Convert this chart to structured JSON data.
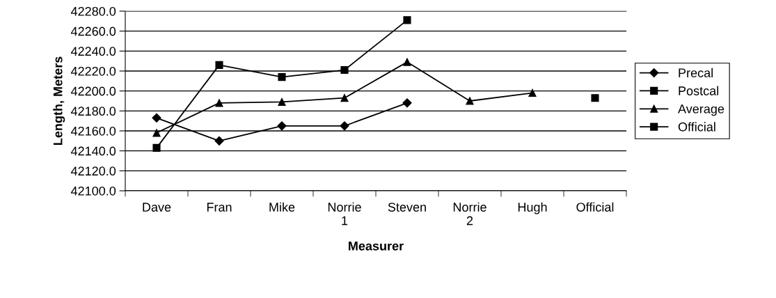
{
  "chart_data": {
    "type": "line",
    "xlabel": "Measurer",
    "ylabel": "Length, Meters",
    "categories": [
      "Dave",
      "Fran",
      "Mike",
      "Norrie\n1",
      "Steven",
      "Norrie\n2",
      "Hugh",
      "Official"
    ],
    "series": [
      {
        "name": "Precal",
        "color": "#000000",
        "marker": "diamond",
        "values": [
          42173,
          42150,
          42165,
          42165,
          42188,
          null,
          null,
          null
        ]
      },
      {
        "name": "Postcal",
        "color": "#000000",
        "marker": "square",
        "values": [
          42143,
          42226,
          42214,
          42221,
          42271,
          null,
          null,
          null
        ]
      },
      {
        "name": "Average",
        "color": "#000000",
        "marker": "triangle",
        "values": [
          42158,
          42188,
          42189,
          42193,
          42229,
          42190,
          42198,
          null
        ]
      },
      {
        "name": "Official",
        "color": "#000000",
        "marker": "square",
        "values": [
          null,
          null,
          null,
          null,
          null,
          null,
          null,
          42193
        ]
      }
    ],
    "ylim": [
      42100,
      42280
    ],
    "yticks": [
      {
        "value": 42100,
        "label": "42100.0"
      },
      {
        "value": 42120,
        "label": "42120.0"
      },
      {
        "value": 42140,
        "label": "42140.0"
      },
      {
        "value": 42160,
        "label": "42160.0"
      },
      {
        "value": 42180,
        "label": "42180.0"
      },
      {
        "value": 42200,
        "label": "42200.0"
      },
      {
        "value": 42220,
        "label": "42220.0"
      },
      {
        "value": 42240,
        "label": "42240.0"
      },
      {
        "value": 42260,
        "label": "42260.0"
      },
      {
        "value": 42280,
        "label": "42280.0"
      }
    ],
    "grid": "y",
    "legend": "right",
    "line_style": "solid"
  }
}
